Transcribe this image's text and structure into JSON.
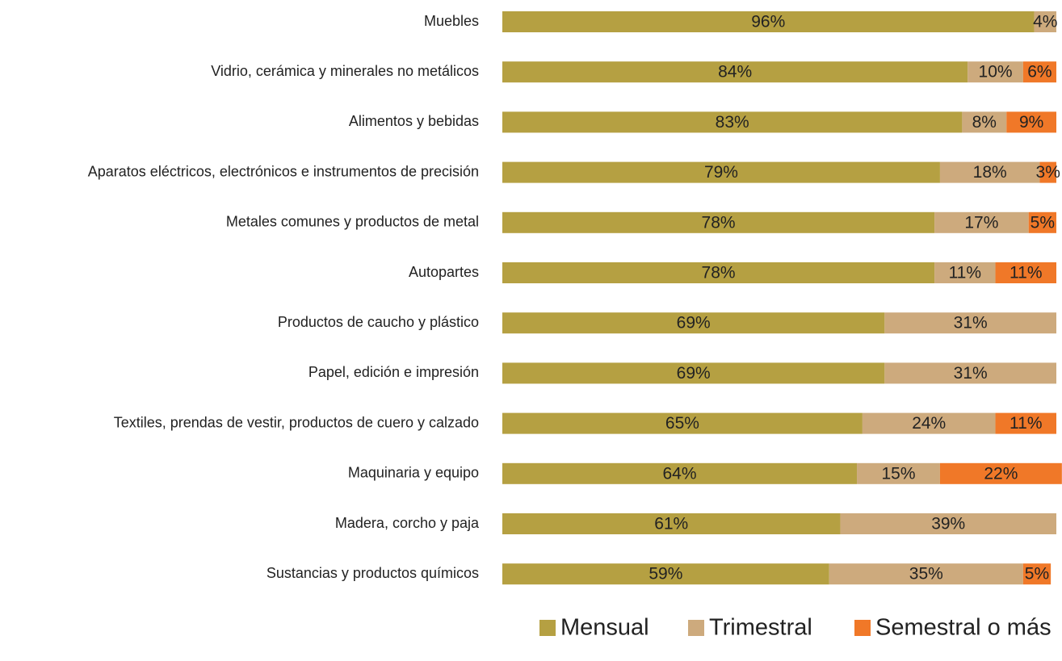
{
  "chart_data": {
    "type": "stacked_barh",
    "categories": [
      "Muebles",
      "Vidrio, cerámica y minerales no metálicos",
      "Alimentos y bebidas",
      "Aparatos eléctricos, electrónicos e instrumentos de precisión",
      "Metales comunes y productos de metal",
      "Autopartes",
      "Productos de caucho y plástico",
      "Papel, edición e impresión",
      "Textiles, prendas de vestir, productos de cuero y calzado",
      "Maquinaria y equipo",
      "Madera, corcho y paja",
      "Sustancias y productos químicos"
    ],
    "xlim": [
      0,
      100
    ],
    "legend": "bottom-right",
    "series": [
      {
        "name": "Mensual",
        "color": "#b5a042",
        "values": [
          96,
          84,
          83,
          79,
          78,
          78,
          69,
          69,
          65,
          64,
          61,
          59
        ],
        "value_labels": [
          "96%",
          "84%",
          "83%",
          "79%",
          "78%",
          "78%",
          "69%",
          "69%",
          "65%",
          "64%",
          "61%",
          "59%"
        ]
      },
      {
        "name": "Trimestral",
        "color": "#cdaa7d",
        "values": [
          4,
          10,
          8,
          18,
          17,
          11,
          31,
          31,
          24,
          15,
          39,
          35
        ],
        "value_labels": [
          "4%",
          "10%",
          "8%",
          "18%",
          "17%",
          "11%",
          "31%",
          "31%",
          "24%",
          "15%",
          "39%",
          "35%"
        ]
      },
      {
        "name": "Semestral o más",
        "color": "#f07828",
        "values": [
          null,
          6,
          9,
          3,
          5,
          11,
          null,
          null,
          11,
          22,
          null,
          5
        ],
        "value_labels": [
          null,
          "6%",
          "9%",
          "3%",
          "5%",
          "11%",
          null,
          null,
          "11%",
          "22%",
          null,
          "5%"
        ]
      }
    ]
  }
}
